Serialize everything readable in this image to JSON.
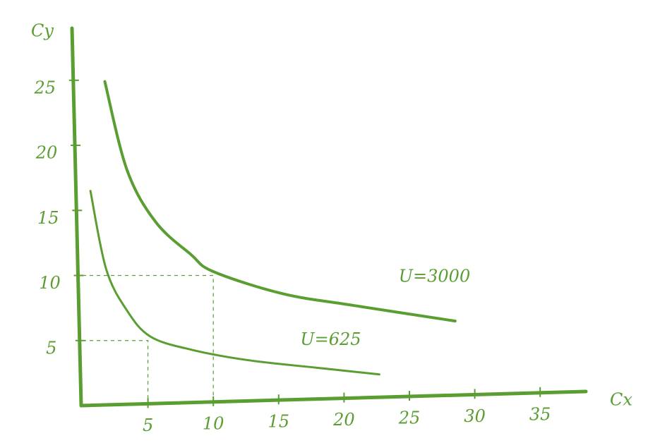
{
  "chart_data": {
    "type": "line",
    "x_label": "Cx",
    "y_label": "Cy",
    "xlim": [
      0,
      38.5
    ],
    "ylim": [
      0,
      29
    ],
    "xticks": [
      5,
      10,
      15,
      20,
      25,
      30,
      35
    ],
    "yticks": [
      5,
      10,
      15,
      20,
      25
    ],
    "color": "#5a9e32",
    "series": [
      {
        "name": "U=3000",
        "x": [
          1.7,
          3.4,
          5.6,
          8.3,
          10,
          15.3,
          20.7,
          28.5
        ],
        "values": [
          24.9,
          18.1,
          14.1,
          11.6,
          10.3,
          8.6,
          7.7,
          6.5
        ]
      },
      {
        "name": "U=625",
        "x": [
          0.6,
          1.8,
          3.4,
          5.2,
          8.3,
          12.6,
          18,
          22.7
        ],
        "values": [
          16.5,
          10.5,
          7.3,
          5.3,
          4.3,
          3.5,
          2.9,
          2.4
        ]
      }
    ],
    "guides": [
      {
        "x": 10,
        "y": 10
      },
      {
        "x": 5,
        "y": 5
      }
    ]
  }
}
